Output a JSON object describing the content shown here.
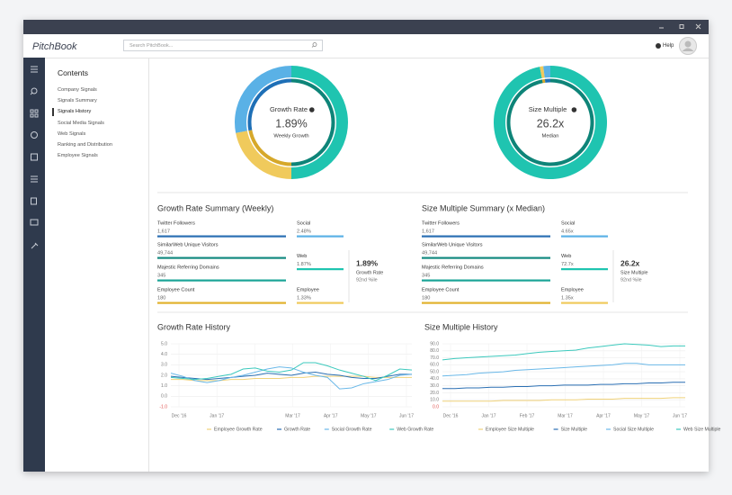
{
  "app": {
    "logo": "PitchBook",
    "search_placeholder": "Search PitchBook...",
    "help": "Help"
  },
  "contents": {
    "title": "Contents",
    "items": [
      "Company Signals",
      "Signals Summary",
      "Signals History",
      "Social Media Signals",
      "Web Signals",
      "Ranking and Distribution",
      "Employee Signals"
    ],
    "active": 2
  },
  "donuts": [
    {
      "title": "Growth Rate",
      "value": "1.89%",
      "sub": "Weekly Growth",
      "segments": [
        {
          "value": 50,
          "color": "#1fc4b0",
          "inner_color": "#0e8478"
        },
        {
          "value": 22,
          "color": "#f0ca5c",
          "inner_color": "#d6a82a"
        },
        {
          "value": 28,
          "color": "#5ab1e6",
          "inner_color": "#1e6fb6"
        }
      ]
    },
    {
      "title": "Size Multiple",
      "value": "26.2x",
      "sub": "Median",
      "segments": [
        {
          "value": 97,
          "color": "#1fc4b0",
          "inner_color": "#0e8478"
        },
        {
          "value": 1,
          "color": "#f0ca5c",
          "inner_color": "#d6a82a"
        },
        {
          "value": 2,
          "color": "#5ab1e6",
          "inner_color": "#1e6fb6"
        }
      ]
    }
  ],
  "summaries": [
    {
      "title": "Growth Rate Summary (Weekly)",
      "left": [
        {
          "label": "Twitter Followers",
          "value": "1,617",
          "color": "#2a6fb3"
        },
        {
          "label": "SimilarWeb Unique Visitors",
          "value": "49,744",
          "color": "#138a80"
        },
        {
          "label": "Majestic Referring Domains",
          "value": "345",
          "color": "#1aa497"
        },
        {
          "label": "Employee Count",
          "value": "180",
          "color": "#e2b22e"
        }
      ],
      "right": [
        {
          "label": "Social",
          "value": "2.48%",
          "color": "#5ab1e6"
        },
        {
          "label": "Web",
          "value": "1.87%",
          "color": "#1fc4b0"
        },
        {
          "label": "Employee",
          "value": "1.33%",
          "color": "#f0ca5c"
        }
      ],
      "highlight": {
        "value": "1.89%",
        "label": "Growth Rate",
        "rank": "92nd %ile"
      }
    },
    {
      "title": "Size Multiple Summary (x Median)",
      "left": [
        {
          "label": "Twitter Followers",
          "value": "1,617",
          "color": "#2a6fb3"
        },
        {
          "label": "SimilarWeb Unique Visitors",
          "value": "49,744",
          "color": "#138a80"
        },
        {
          "label": "Majestic Referring Domains",
          "value": "345",
          "color": "#1aa497"
        },
        {
          "label": "Employee Count",
          "value": "180",
          "color": "#e2b22e"
        }
      ],
      "right": [
        {
          "label": "Social",
          "value": "4.65x",
          "color": "#5ab1e6"
        },
        {
          "label": "Web",
          "value": "72.7x",
          "color": "#1fc4b0"
        },
        {
          "label": "Employee",
          "value": "1.35x",
          "color": "#f0ca5c"
        }
      ],
      "highlight": {
        "value": "26.2x",
        "label": "Size Multiple",
        "rank": "92nd %ile"
      }
    }
  ],
  "charts": [
    {
      "type": "line",
      "title": "Growth Rate History",
      "xticks": [
        "Dec '16",
        "Jan '17",
        null,
        "Mar '17",
        "Apr '17",
        "May '17",
        "Jun '17"
      ],
      "ylim": [
        -1,
        5
      ],
      "yticks": [
        {
          "value": 5,
          "label": "5.0"
        },
        {
          "value": 4,
          "label": "4.0"
        },
        {
          "value": 3,
          "label": "3.0"
        },
        {
          "value": 2,
          "label": "2.0"
        },
        {
          "value": 1,
          "label": "1.0"
        },
        {
          "value": 0,
          "label": "0.0"
        },
        {
          "value": -1,
          "label": "-1.0"
        }
      ],
      "series": [
        {
          "name": "Employee Growth Rate",
          "color": "#f0d27a",
          "values": [
            1.6,
            1.6,
            1.5,
            1.5,
            1.5,
            1.6,
            1.6,
            1.7,
            1.7,
            1.7,
            1.8,
            1.8,
            1.9,
            1.9,
            1.9,
            1.9,
            1.9,
            1.8,
            1.8,
            1.8,
            1.8
          ]
        },
        {
          "name": "Growth Rate",
          "color": "#2a6fb3",
          "values": [
            1.9,
            1.8,
            1.7,
            1.6,
            1.7,
            1.8,
            1.9,
            2.0,
            2.2,
            2.1,
            2.0,
            2.2,
            2.3,
            2.1,
            2.0,
            1.8,
            1.7,
            1.7,
            1.9,
            2.1,
            2.1
          ]
        },
        {
          "name": "Social Growth Rate",
          "color": "#6ab8e8",
          "values": [
            2.2,
            1.9,
            1.5,
            1.3,
            1.5,
            1.8,
            2.0,
            2.3,
            2.6,
            2.8,
            2.7,
            2.3,
            2.0,
            1.8,
            0.7,
            0.8,
            1.2,
            1.4,
            1.6,
            2.0,
            2.1
          ]
        },
        {
          "name": "Web Growth Rate",
          "color": "#3cc9bd",
          "values": [
            1.8,
            1.7,
            1.6,
            1.7,
            1.9,
            2.1,
            2.6,
            2.7,
            2.4,
            2.3,
            2.5,
            3.2,
            3.2,
            2.9,
            2.5,
            2.2,
            1.9,
            1.5,
            2.0,
            2.6,
            2.5
          ]
        }
      ]
    },
    {
      "type": "line",
      "title": "Size Multiple History",
      "xticks": [
        "Dec '16",
        "Jan '17",
        "Feb '17",
        "Mar '17",
        "Apr '17",
        "May '17",
        "Jun '17"
      ],
      "ylim": [
        0,
        90
      ],
      "yticks": [
        {
          "value": 90,
          "label": "90.0"
        },
        {
          "value": 80,
          "label": "80.0"
        },
        {
          "value": 70,
          "label": "70.0"
        },
        {
          "value": 60,
          "label": "60.0"
        },
        {
          "value": 50,
          "label": "50.0"
        },
        {
          "value": 40,
          "label": "40.0"
        },
        {
          "value": 30,
          "label": "30.0"
        },
        {
          "value": 20,
          "label": "20.0"
        },
        {
          "value": 10,
          "label": "10.0"
        },
        {
          "value": 0,
          "label": "0.0"
        }
      ],
      "series": [
        {
          "name": "Employee Size Multiple",
          "color": "#f0d27a",
          "values": [
            8,
            8,
            8,
            8,
            8,
            9,
            9,
            9,
            9,
            10,
            10,
            10,
            11,
            11,
            11,
            12,
            12,
            12,
            12,
            13,
            13
          ]
        },
        {
          "name": "Size Multiple",
          "color": "#2a6fb3",
          "values": [
            26,
            26,
            27,
            27,
            28,
            28,
            29,
            29,
            30,
            30,
            31,
            31,
            31,
            32,
            32,
            33,
            33,
            34,
            34,
            35,
            35
          ]
        },
        {
          "name": "Social Size Multiple",
          "color": "#6ab8e8",
          "values": [
            44,
            45,
            46,
            48,
            49,
            50,
            52,
            53,
            54,
            55,
            56,
            57,
            58,
            59,
            60,
            62,
            62,
            60,
            60,
            60,
            60
          ]
        },
        {
          "name": "Web Size Multiple",
          "color": "#3cc9bd",
          "values": [
            67,
            69,
            70,
            71,
            72,
            73,
            74,
            76,
            78,
            79,
            80,
            81,
            84,
            86,
            88,
            90,
            89,
            88,
            86,
            87,
            87
          ]
        }
      ]
    }
  ]
}
